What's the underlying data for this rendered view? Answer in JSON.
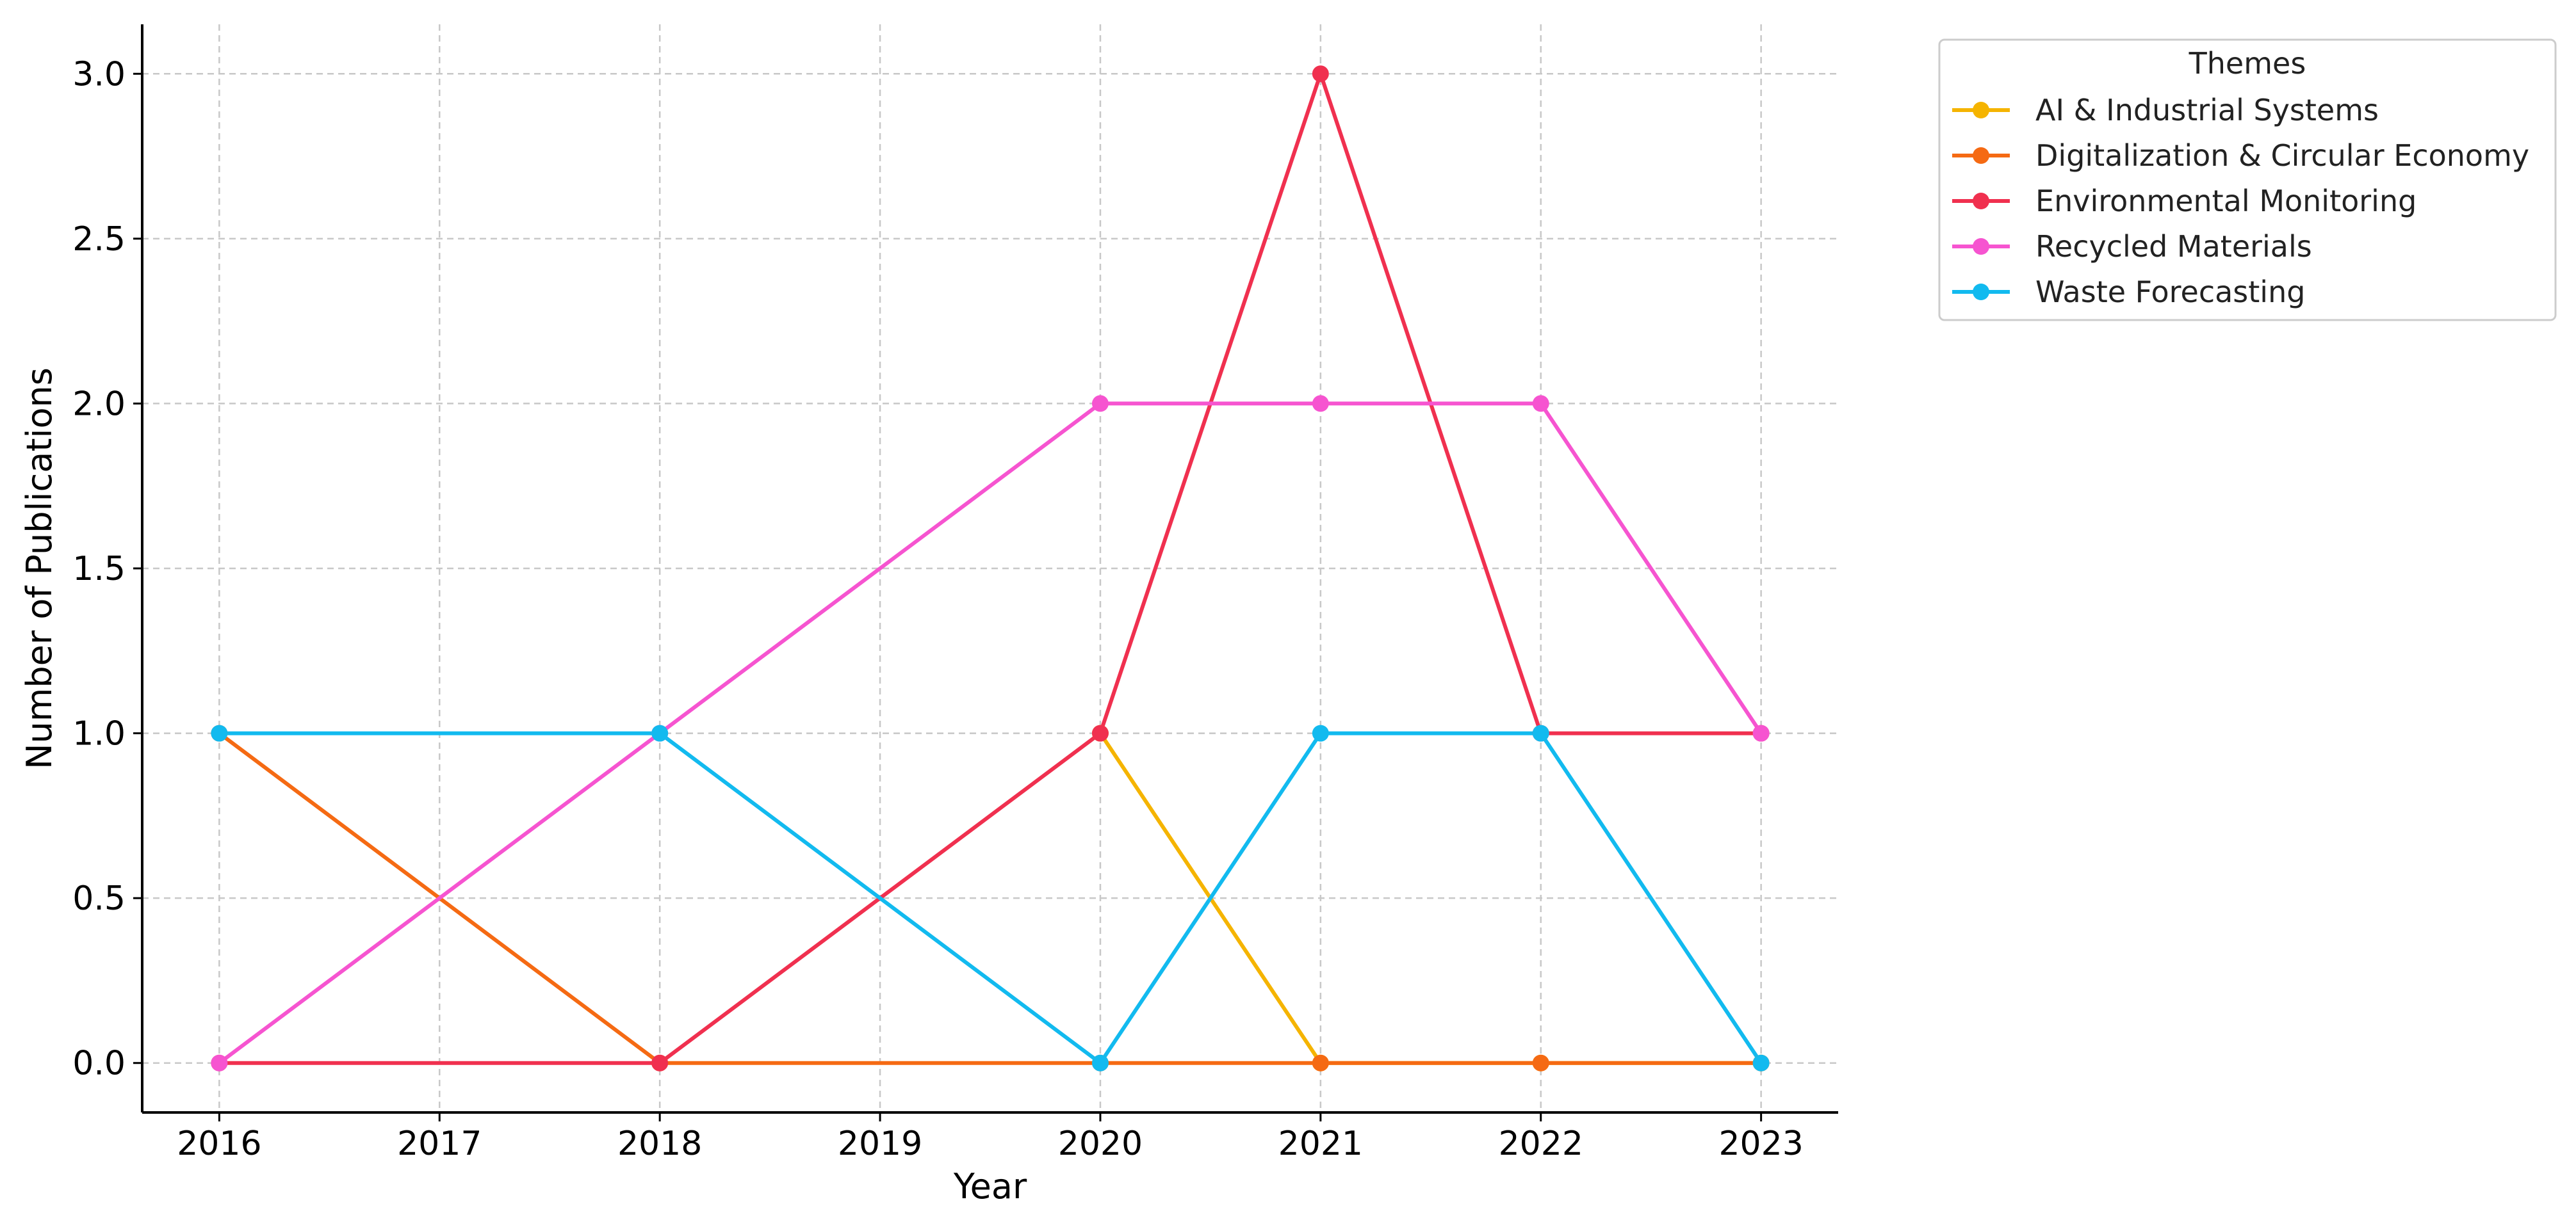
{
  "chart_data": {
    "type": "line",
    "title": "",
    "xlabel": "Year",
    "ylabel": "Number of Publications",
    "x": [
      2016,
      2017,
      2018,
      2019,
      2020,
      2021,
      2022,
      2023
    ],
    "x_ticks": [
      "2016",
      "2017",
      "2018",
      "2019",
      "2020",
      "2021",
      "2022",
      "2023"
    ],
    "xlim": [
      2015.65,
      2023.35
    ],
    "ylim": [
      -0.15,
      3.15
    ],
    "y_ticks": [
      0.0,
      0.5,
      1.0,
      1.5,
      2.0,
      2.5,
      3.0
    ],
    "y_tick_labels": [
      "0.0",
      "0.5",
      "1.0",
      "1.5",
      "2.0",
      "2.5",
      "3.0"
    ],
    "grid": true,
    "legend": {
      "title": "Themes",
      "placement": "outside-top-right"
    },
    "series": [
      {
        "name": "AI & Industrial Systems",
        "color": "#f5b400",
        "points": [
          [
            2020,
            1
          ],
          [
            2021,
            0
          ],
          [
            2022,
            0
          ],
          [
            2023,
            0
          ]
        ]
      },
      {
        "name": "Digitalization & Circular Economy",
        "color": "#f56a13",
        "points": [
          [
            2016,
            1
          ],
          [
            2018,
            0
          ],
          [
            2020,
            0
          ],
          [
            2021,
            0
          ],
          [
            2022,
            0
          ],
          [
            2023,
            0
          ]
        ]
      },
      {
        "name": "Environmental Monitoring",
        "color": "#f0304f",
        "points": [
          [
            2016,
            0
          ],
          [
            2018,
            0
          ],
          [
            2020,
            1
          ],
          [
            2021,
            3
          ],
          [
            2022,
            1
          ],
          [
            2023,
            1
          ]
        ]
      },
      {
        "name": "Recycled Materials",
        "color": "#f654d0",
        "points": [
          [
            2016,
            0
          ],
          [
            2018,
            1
          ],
          [
            2020,
            2
          ],
          [
            2021,
            2
          ],
          [
            2022,
            2
          ],
          [
            2023,
            1
          ]
        ]
      },
      {
        "name": "Waste Forecasting",
        "color": "#12baef",
        "points": [
          [
            2016,
            1
          ],
          [
            2018,
            1
          ],
          [
            2020,
            0
          ],
          [
            2021,
            1
          ],
          [
            2022,
            1
          ],
          [
            2023,
            0
          ]
        ]
      }
    ]
  }
}
